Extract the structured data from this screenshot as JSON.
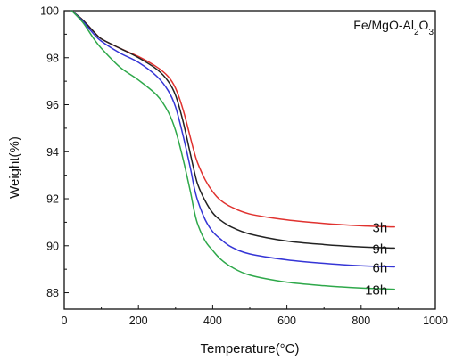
{
  "chart_data": {
    "type": "line",
    "title": "",
    "xlabel": "Temperature(°C)",
    "ylabel": "Weight(%)",
    "xlim": [
      0,
      1000
    ],
    "ylim": [
      87.3,
      100
    ],
    "x_ticks": [
      "0",
      "200",
      "400",
      "600",
      "800",
      "1000"
    ],
    "y_ticks": [
      "88",
      "90",
      "92",
      "94",
      "96",
      "98",
      "100"
    ],
    "grid": false,
    "annotation": {
      "base": "Fe/MgO-Al",
      "sub1": "2",
      "mid": "O",
      "sub2": "3"
    },
    "series": [
      {
        "name": "3h",
        "color": "#e0322f",
        "x": [
          20,
          50,
          80,
          100,
          150,
          200,
          250,
          280,
          300,
          320,
          340,
          350,
          360,
          380,
          400,
          420,
          450,
          500,
          600,
          700,
          800,
          890
        ],
        "y": [
          100,
          99.6,
          99.1,
          98.8,
          98.4,
          98.05,
          97.6,
          97.2,
          96.7,
          95.8,
          94.6,
          94.0,
          93.5,
          92.8,
          92.3,
          91.95,
          91.65,
          91.35,
          91.1,
          90.95,
          90.85,
          90.8
        ]
      },
      {
        "name": "9h",
        "color": "#222222",
        "x": [
          20,
          50,
          80,
          100,
          150,
          200,
          250,
          280,
          300,
          320,
          340,
          350,
          360,
          380,
          400,
          420,
          450,
          500,
          600,
          700,
          800,
          890
        ],
        "y": [
          100,
          99.6,
          99.1,
          98.8,
          98.4,
          98.0,
          97.5,
          97.0,
          96.4,
          95.3,
          93.9,
          93.2,
          92.6,
          91.9,
          91.4,
          91.1,
          90.8,
          90.5,
          90.2,
          90.05,
          89.95,
          89.9
        ]
      },
      {
        "name": "6h",
        "color": "#3535d6",
        "x": [
          20,
          50,
          80,
          100,
          150,
          200,
          250,
          280,
          300,
          320,
          340,
          350,
          360,
          380,
          400,
          420,
          450,
          500,
          600,
          700,
          800,
          890
        ],
        "y": [
          100,
          99.55,
          99.0,
          98.7,
          98.2,
          97.8,
          97.2,
          96.6,
          95.9,
          94.7,
          93.3,
          92.5,
          91.9,
          91.1,
          90.6,
          90.3,
          89.95,
          89.65,
          89.4,
          89.25,
          89.15,
          89.1
        ]
      },
      {
        "name": "18h",
        "color": "#2ea84a",
        "x": [
          20,
          50,
          80,
          100,
          150,
          200,
          250,
          280,
          300,
          320,
          340,
          350,
          360,
          380,
          400,
          420,
          450,
          500,
          600,
          700,
          800,
          890
        ],
        "y": [
          100,
          99.5,
          98.8,
          98.4,
          97.6,
          97.05,
          96.4,
          95.7,
          94.9,
          93.7,
          92.3,
          91.5,
          90.9,
          90.2,
          89.8,
          89.45,
          89.1,
          88.75,
          88.45,
          88.3,
          88.2,
          88.15
        ]
      }
    ],
    "label_anchor_x": 890
  }
}
